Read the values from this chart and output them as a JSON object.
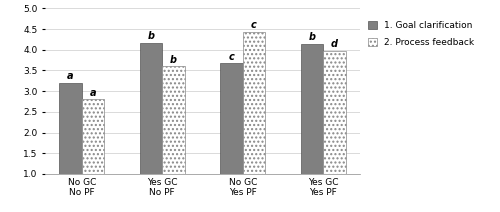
{
  "categories": [
    "No GC\nNo PF",
    "Yes GC\nNo PF",
    "No GC\nYes PF",
    "Yes GC\nYes PF"
  ],
  "goal_clarification": [
    3.2,
    4.17,
    3.67,
    4.15
  ],
  "process_feedback": [
    2.8,
    3.6,
    4.43,
    3.98
  ],
  "gc_labels": [
    "a",
    "b",
    "c",
    "b"
  ],
  "pf_labels": [
    "a",
    "b",
    "c",
    "d"
  ],
  "gc_color": "#808080",
  "pf_hatch": "....",
  "pf_facecolor": "#b8b8b8",
  "bar_width": 0.28,
  "ylim": [
    1,
    5
  ],
  "yticks": [
    1,
    1.5,
    2,
    2.5,
    3,
    3.5,
    4,
    4.5,
    5
  ],
  "legend_label_1": "1. Goal clarification",
  "legend_label_2": "2. Process feedback",
  "tick_fontsize": 6.5,
  "label_fontsize": 7,
  "legend_fontsize": 6.5
}
